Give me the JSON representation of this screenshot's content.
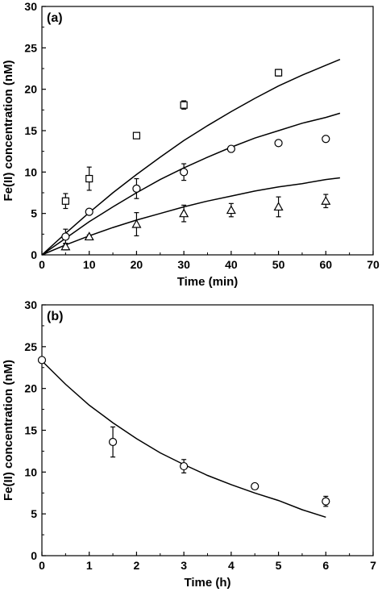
{
  "chart_data": [
    {
      "type": "scatter",
      "panel_label": "(a)",
      "xlabel": "Time (min)",
      "ylabel": "Fe(II) concentration (nM)",
      "xlim": [
        0,
        70
      ],
      "ylim": [
        0,
        30
      ],
      "xticks": [
        "0",
        "10",
        "20",
        "30",
        "40",
        "50",
        "60",
        "70"
      ],
      "yticks": [
        "0",
        "5",
        "10",
        "15",
        "20",
        "25",
        "30"
      ],
      "grid": false,
      "series": [
        {
          "marker": "square",
          "points": [
            {
              "x": 5,
              "y": 6.5,
              "err": 0.9
            },
            {
              "x": 10,
              "y": 9.2,
              "err": 1.4
            },
            {
              "x": 20,
              "y": 14.4,
              "err": 0.3
            },
            {
              "x": 30,
              "y": 18.1,
              "err": 0.5
            },
            {
              "x": 50,
              "y": 22.0,
              "err": 0.4
            }
          ],
          "fit": [
            [
              0,
              0
            ],
            [
              5,
              2.6
            ],
            [
              10,
              5.1
            ],
            [
              15,
              7.5
            ],
            [
              20,
              9.7
            ],
            [
              25,
              11.8
            ],
            [
              30,
              13.8
            ],
            [
              35,
              15.6
            ],
            [
              40,
              17.3
            ],
            [
              45,
              18.9
            ],
            [
              50,
              20.4
            ],
            [
              55,
              21.7
            ],
            [
              60,
              22.9
            ],
            [
              63,
              23.6
            ]
          ]
        },
        {
          "marker": "circle",
          "points": [
            {
              "x": 5,
              "y": 2.2,
              "err": 0.9
            },
            {
              "x": 10,
              "y": 5.2,
              "err": 0.2
            },
            {
              "x": 20,
              "y": 8.0,
              "err": 1.2
            },
            {
              "x": 30,
              "y": 10.0,
              "err": 1.0
            },
            {
              "x": 40,
              "y": 12.8,
              "err": 0.3
            },
            {
              "x": 50,
              "y": 13.5,
              "err": 0.2
            },
            {
              "x": 60,
              "y": 14.0,
              "err": 0.2
            }
          ],
          "fit": [
            [
              0,
              0
            ],
            [
              5,
              2.0
            ],
            [
              10,
              4.0
            ],
            [
              15,
              5.8
            ],
            [
              20,
              7.5
            ],
            [
              25,
              9.1
            ],
            [
              30,
              10.5
            ],
            [
              35,
              11.8
            ],
            [
              40,
              13.0
            ],
            [
              45,
              14.1
            ],
            [
              50,
              15.0
            ],
            [
              55,
              15.9
            ],
            [
              60,
              16.6
            ],
            [
              63,
              17.1
            ]
          ]
        },
        {
          "marker": "triangle",
          "points": [
            {
              "x": 5,
              "y": 1.0,
              "err": 0.4
            },
            {
              "x": 10,
              "y": 2.2,
              "err": 0.2
            },
            {
              "x": 20,
              "y": 3.7,
              "err": 1.4
            },
            {
              "x": 30,
              "y": 5.0,
              "err": 1.0
            },
            {
              "x": 40,
              "y": 5.4,
              "err": 0.8
            },
            {
              "x": 50,
              "y": 5.8,
              "err": 1.2
            },
            {
              "x": 60,
              "y": 6.5,
              "err": 0.8
            }
          ],
          "fit": [
            [
              0,
              0
            ],
            [
              5,
              1.2
            ],
            [
              10,
              2.3
            ],
            [
              15,
              3.3
            ],
            [
              20,
              4.2
            ],
            [
              25,
              5.0
            ],
            [
              30,
              5.8
            ],
            [
              35,
              6.5
            ],
            [
              40,
              7.1
            ],
            [
              45,
              7.7
            ],
            [
              50,
              8.2
            ],
            [
              55,
              8.6
            ],
            [
              60,
              9.1
            ],
            [
              63,
              9.3
            ]
          ]
        }
      ]
    },
    {
      "type": "scatter",
      "panel_label": "(b)",
      "xlabel": "Time (h)",
      "ylabel": "Fe(II) concentration (nM)",
      "xlim": [
        0,
        7
      ],
      "ylim": [
        0,
        30
      ],
      "xticks": [
        "0",
        "1",
        "2",
        "3",
        "4",
        "5",
        "6",
        "7"
      ],
      "yticks": [
        "0",
        "5",
        "10",
        "15",
        "20",
        "25",
        "30"
      ],
      "grid": false,
      "series": [
        {
          "marker": "circle",
          "points": [
            {
              "x": 0,
              "y": 23.4,
              "err": 0.3
            },
            {
              "x": 1.5,
              "y": 13.6,
              "err": 1.8
            },
            {
              "x": 3,
              "y": 10.7,
              "err": 0.8
            },
            {
              "x": 4.5,
              "y": 8.3,
              "err": 0.2
            },
            {
              "x": 6,
              "y": 6.5,
              "err": 0.6
            }
          ],
          "fit": [
            [
              0,
              23.3
            ],
            [
              0.5,
              20.5
            ],
            [
              1,
              18.0
            ],
            [
              1.5,
              15.9
            ],
            [
              2,
              14.0
            ],
            [
              2.5,
              12.3
            ],
            [
              3,
              10.9
            ],
            [
              3.5,
              9.6
            ],
            [
              4,
              8.5
            ],
            [
              4.5,
              7.5
            ],
            [
              5,
              6.6
            ],
            [
              5.5,
              5.5
            ],
            [
              6,
              4.6
            ]
          ]
        }
      ]
    }
  ]
}
